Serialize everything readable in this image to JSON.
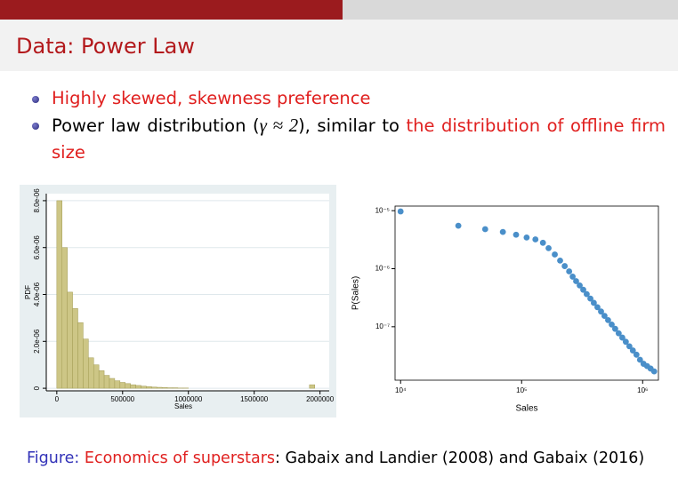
{
  "header": {
    "title": "Data: Power Law"
  },
  "bullets": [
    {
      "text": "Highly skewed, skewness preference"
    },
    {
      "parts": [
        "Power law distribution (",
        "γ ≈ 2",
        "), similar to ",
        "the distribution of offline firm size"
      ]
    }
  ],
  "chart_data": [
    {
      "type": "histogram",
      "x_label": "Sales",
      "y_label": "PDF",
      "color": "#cdc686",
      "edge_color": "#a39c55",
      "grid": true,
      "bins": [
        0,
        40000,
        80000,
        120000,
        160000,
        200000,
        240000,
        280000,
        320000,
        360000,
        400000,
        440000,
        480000,
        520000,
        560000,
        600000,
        640000,
        680000,
        720000,
        760000,
        800000,
        840000,
        880000,
        920000,
        960000,
        1000000,
        1040000,
        1080000,
        1120000,
        1160000,
        1200000,
        1240000,
        1280000,
        1320000,
        1360000,
        1400000,
        1440000,
        1480000,
        1520000,
        1560000,
        1600000,
        1640000,
        1680000,
        1720000,
        1760000,
        1800000,
        1840000,
        1880000,
        1920000,
        1960000,
        2000000
      ],
      "values": [
        8e-06,
        6e-06,
        4.1e-06,
        3.4e-06,
        2.8e-06,
        2.1e-06,
        1.3e-06,
        1e-06,
        7.5e-07,
        5.5e-07,
        4.2e-07,
        3.2e-07,
        2.5e-07,
        2e-07,
        1.5e-07,
        1.2e-07,
        9e-08,
        7e-08,
        5e-08,
        4e-08,
        3e-08,
        2e-08,
        2e-08,
        1e-08,
        1e-08,
        0,
        0,
        0,
        0,
        0,
        0,
        0,
        0,
        0,
        0,
        0,
        0,
        0,
        0,
        0,
        0,
        0,
        0,
        0,
        0,
        0,
        0,
        0,
        1.5e-07,
        0
      ],
      "xlim": [
        -80000,
        2070000
      ],
      "ylim": [
        -1.1e-07,
        8.3e-06
      ],
      "xticks": [
        0,
        500000,
        1000000,
        1500000,
        2000000
      ],
      "yticks": [
        0,
        {
          "value": 2e-06,
          "label": "2.0e-06"
        },
        {
          "value": 4e-06,
          "label": "4.0e-06"
        },
        {
          "value": 6e-06,
          "label": "6.0e-06"
        },
        {
          "value": 8e-06,
          "label": "8.0e-06"
        }
      ]
    },
    {
      "type": "scatter",
      "x_label": "Sales",
      "y_label": "P(Sales)",
      "color": "#4a8fc9",
      "x_log": true,
      "y_log": true,
      "x": [
        10000,
        30000,
        50000,
        70000,
        90000,
        110000,
        130000,
        150000,
        167000,
        188000,
        208000,
        227000,
        247000,
        264000,
        282000,
        302000,
        323000,
        345000,
        370000,
        395000,
        423000,
        453000,
        484000,
        518000,
        555000,
        593000,
        634000,
        679000,
        726000,
        777000,
        830000,
        889000,
        951000,
        1017000,
        1088000,
        1164000,
        1245000
      ],
      "values": [
        9.7e-06,
        5.5e-06,
        4.8e-06,
        4.3e-06,
        3.85e-06,
        3.45e-06,
        3.2e-06,
        2.8e-06,
        2.26e-06,
        1.76e-06,
        1.38e-06,
        1.11e-06,
        9e-07,
        7.3e-07,
        6.11e-07,
        5.14e-07,
        4.34e-07,
        3.65e-07,
        3.06e-07,
        2.58e-07,
        2.17e-07,
        1.83e-07,
        1.54e-07,
        1.3e-07,
        1.09e-07,
        9.2e-08,
        7.7e-08,
        6.5e-08,
        5.5e-08,
        4.6e-08,
        3.9e-08,
        3.3e-08,
        2.7e-08,
        2.3e-08,
        2.1e-08,
        1.9e-08,
        1.7e-08
      ],
      "xlim": [
        9000,
        1350000
      ],
      "ylim": [
        1.2e-08,
        1.2e-05
      ],
      "xticks": [
        {
          "value": 10000,
          "label": "10⁴"
        },
        {
          "value": 100000,
          "label": "10⁵"
        },
        {
          "value": 1000000,
          "label": "10⁶"
        }
      ],
      "yticks": [
        {
          "value": 1e-07,
          "label": "10⁻⁷"
        },
        {
          "value": 1e-06,
          "label": "10⁻⁶"
        },
        {
          "value": 1e-05,
          "label": "10⁻⁵"
        }
      ]
    }
  ],
  "caption": {
    "label": "Figure:",
    "title": "Economics of superstars",
    "text": ": Gabaix and Landier (2008) and Gabaix (2016)"
  }
}
